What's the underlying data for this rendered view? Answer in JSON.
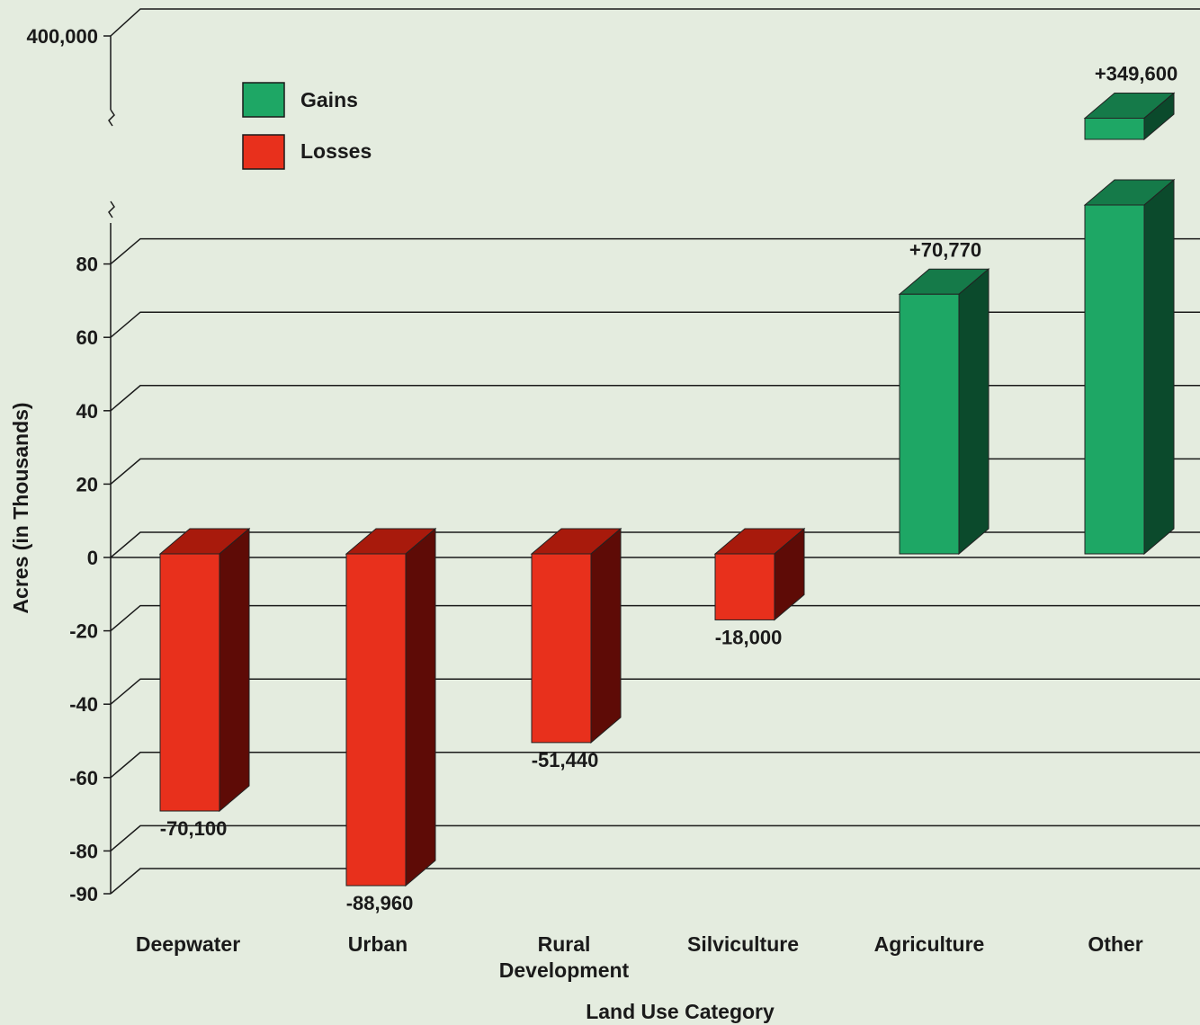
{
  "chart_data": {
    "type": "bar",
    "title": "",
    "xlabel": "Land Use Category",
    "ylabel": "Acres (in Thousands)",
    "categories": [
      "Deepwater",
      "Urban",
      "Rural Development",
      "Silviculture",
      "Agriculture",
      "Other"
    ],
    "category_lines": [
      [
        "Deepwater"
      ],
      [
        "Urban"
      ],
      [
        "Rural",
        "Development"
      ],
      [
        "Silviculture"
      ],
      [
        "Agriculture"
      ],
      [
        "Other"
      ]
    ],
    "values": [
      -70.1,
      -88.96,
      -51.44,
      -18.0,
      70.77,
      349.6
    ],
    "data_labels": [
      "-70,100",
      "-88,960",
      "-51,440",
      "-18,000",
      "+70,770",
      "+349,600"
    ],
    "yticks": [
      {
        "value": 80,
        "label": "80"
      },
      {
        "value": 60,
        "label": "60"
      },
      {
        "value": 40,
        "label": "40"
      },
      {
        "value": 20,
        "label": "20"
      },
      {
        "value": 0,
        "label": "0"
      },
      {
        "value": -20,
        "label": "-20"
      },
      {
        "value": -40,
        "label": "-40"
      },
      {
        "value": -60,
        "label": "-60"
      },
      {
        "value": -80,
        "label": "-80"
      },
      {
        "value": -90,
        "label": "-90"
      }
    ],
    "axis_break": {
      "upper_tick_value": 400,
      "upper_tick_label": "400,000"
    },
    "ylim": [
      -90,
      400
    ],
    "grid": true,
    "legend": {
      "placement": "top-left",
      "entries": [
        {
          "name": "Gains",
          "color": "#1ea765"
        },
        {
          "name": "Losses",
          "color": "#e8301c"
        }
      ]
    },
    "colors": {
      "gain_front": "#1ea765",
      "gain_top": "#157a49",
      "gain_side": "#0b4a2c",
      "loss_front": "#e8301c",
      "loss_top": "#a81a0c",
      "loss_side": "#5e0b06",
      "background": "#e4ecdf",
      "grid": "#1a1a1a"
    }
  }
}
